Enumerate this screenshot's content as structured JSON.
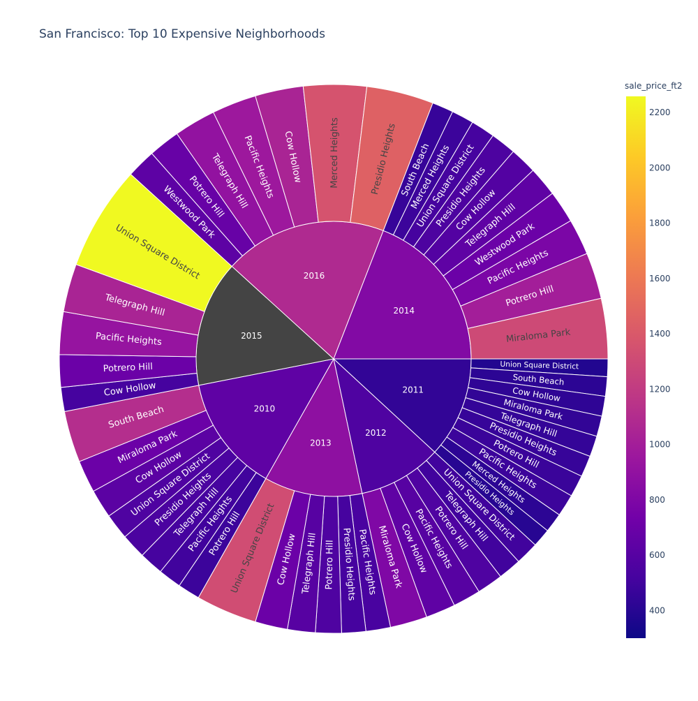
{
  "chart_data": {
    "type": "sunburst",
    "title": "San Francisco: Top 10 Expensive Neighborhoods",
    "colorbar": {
      "title": "sale_price_ft2",
      "range": [
        300,
        2258
      ],
      "ticks": [
        400,
        600,
        800,
        1000,
        1200,
        1400,
        1600,
        1800,
        2000,
        2200
      ],
      "colorscale": [
        "#0d0887",
        "#46039f",
        "#7201a8",
        "#9c179e",
        "#bd3786",
        "#d8576b",
        "#ed7953",
        "#fb9f3a",
        "#fdca26",
        "#f0f921"
      ]
    },
    "years": [
      {
        "label": "2011",
        "children": [
          {
            "label": "Union Square District",
            "value": 380
          },
          {
            "label": "South Beach",
            "value": 420
          },
          {
            "label": "Cow Hollow",
            "value": 430
          },
          {
            "label": "Miraloma Park",
            "value": 440
          },
          {
            "label": "Telegraph Hill",
            "value": 450
          },
          {
            "label": "Presidio Heights",
            "value": 460
          },
          {
            "label": "Potrero Hill",
            "value": 470
          },
          {
            "label": "Pacific Heights",
            "value": 480
          },
          {
            "label": "Merced Heights",
            "value": 420
          },
          {
            "label": "Presidio Heights",
            "value": 400
          }
        ]
      },
      {
        "label": "2012",
        "children": [
          {
            "label": "Union Square District",
            "value": 500
          },
          {
            "label": "Telegraph Hill",
            "value": 500
          },
          {
            "label": "Potrero Hill",
            "value": 560
          },
          {
            "label": "Pacific Heights",
            "value": 600
          },
          {
            "label": "Cow Hollow",
            "value": 640
          },
          {
            "label": "Miraloma Park",
            "value": 800
          }
        ]
      },
      {
        "label": "2013",
        "children": [
          {
            "label": "Pacific Heights",
            "value": 530
          },
          {
            "label": "Presidio Heights",
            "value": 520
          },
          {
            "label": "Potrero Hill",
            "value": 560
          },
          {
            "label": "Telegraph Hill",
            "value": 600
          },
          {
            "label": "Cow Hollow",
            "value": 700
          },
          {
            "label": "Union Square District",
            "value": 1320
          }
        ]
      },
      {
        "label": "2010",
        "children": [
          {
            "label": "Potrero Hill",
            "value": 480
          },
          {
            "label": "Pacific Heights",
            "value": 500
          },
          {
            "label": "Telegraph Hill",
            "value": 520
          },
          {
            "label": "Presidio Heights",
            "value": 540
          },
          {
            "label": "Union Square District",
            "value": 560
          },
          {
            "label": "Cow Hollow",
            "value": 620
          },
          {
            "label": "Miraloma Park",
            "value": 700
          },
          {
            "label": "South Beach",
            "value": 1110
          }
        ]
      },
      {
        "label": "2015",
        "children": [
          {
            "label": "Cow Hollow",
            "value": 520
          },
          {
            "label": "Potrero Hill",
            "value": 700
          },
          {
            "label": "Pacific Heights",
            "value": 920
          },
          {
            "label": "Telegraph Hill",
            "value": 1040
          },
          {
            "label": "Union Square District",
            "value": 2258
          }
        ]
      },
      {
        "label": "2016",
        "children": [
          {
            "label": "Westwood Park",
            "value": 630
          },
          {
            "label": "Potrero Hill",
            "value": 680
          },
          {
            "label": "Telegraph Hill",
            "value": 900
          },
          {
            "label": "Pacific Heights",
            "value": 960
          },
          {
            "label": "Cow Hollow",
            "value": 1040
          },
          {
            "label": "Merced Heights",
            "value": 1360
          },
          {
            "label": "Presidio Heights",
            "value": 1450
          }
        ]
      },
      {
        "label": "2014",
        "children": [
          {
            "label": "South Beach",
            "value": 460
          },
          {
            "label": "Merced Heights",
            "value": 480
          },
          {
            "label": "Union Square District",
            "value": 520
          },
          {
            "label": "Presidio Heights",
            "value": 550
          },
          {
            "label": "Cow Hollow",
            "value": 580
          },
          {
            "label": "Telegraph Hill",
            "value": 640
          },
          {
            "label": "Westwood Park",
            "value": 700
          },
          {
            "label": "Pacific Heights",
            "value": 780
          },
          {
            "label": "Potrero Hill",
            "value": 1000
          },
          {
            "label": "Miraloma Park",
            "value": 1300
          }
        ]
      }
    ],
    "year_color_values": {
      "2011": 440,
      "2012": 560,
      "2013": 880,
      "2010": 640,
      "2014": 820,
      "2016": 1080
    },
    "year_2015_color": "#444444"
  }
}
